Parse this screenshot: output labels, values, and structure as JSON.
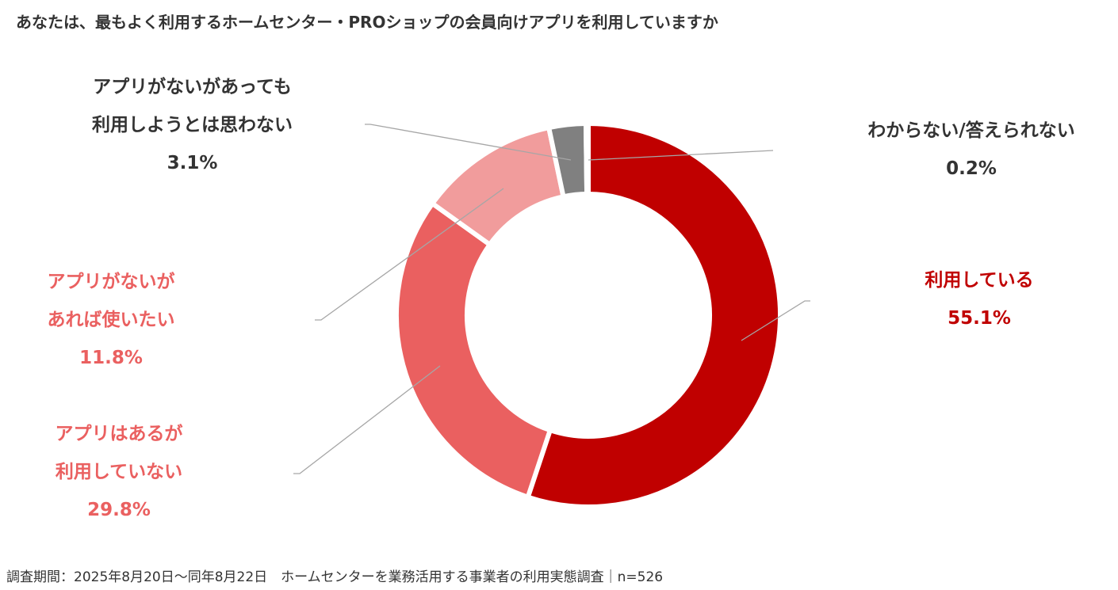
{
  "title": "あなたは、最もよく利用するホームセンター・PROショップの会員向けアプリを利用していますか",
  "footer": "調査期間：2025年8月20日～同年8月22日　ホームセンターを業務活用する事業者の利用実態調査｜n=526",
  "chart_data": {
    "type": "pie",
    "style": "donut",
    "title": "あなたは、最もよく利用するホームセンター・PROショップの会員向けアプリを利用していますか",
    "unit": "%",
    "slices": [
      {
        "label_lines": [
          "利用している"
        ],
        "value": 55.1,
        "value_label": "55.1%",
        "color": "#C00000",
        "label_color": "#C00000"
      },
      {
        "label_lines": [
          "アプリはあるが",
          "利用していない"
        ],
        "value": 29.8,
        "value_label": "29.8%",
        "color": "#EA6060",
        "label_color": "#EA6060"
      },
      {
        "label_lines": [
          "アプリがないが",
          "あれば使いたい"
        ],
        "value": 11.8,
        "value_label": "11.8%",
        "color": "#F19C9C",
        "label_color": "#EA6060"
      },
      {
        "label_lines": [
          "アプリがないがあっても",
          "利用しようとは思わない"
        ],
        "value": 3.1,
        "value_label": "3.1%",
        "color": "#808080",
        "label_color": "#333333"
      },
      {
        "label_lines": [
          "わからない/答えられない"
        ],
        "value": 0.2,
        "value_label": "0.2%",
        "color": "#A6A6A6",
        "label_color": "#333333"
      }
    ]
  }
}
